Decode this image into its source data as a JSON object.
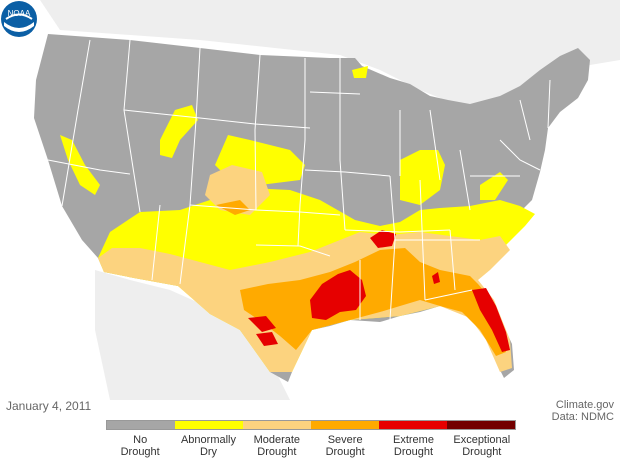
{
  "map": {
    "date": "January 4, 2011",
    "credit_line1": "Climate.gov",
    "credit_line2": "Data: NDMC",
    "logo_text": "NOAA",
    "colors": {
      "no_drought": "#a6a6a6",
      "abnormally_dry": "#ffff00",
      "moderate": "#fcd37f",
      "severe": "#ffaa00",
      "extreme": "#e60000",
      "exceptional": "#730000",
      "state_border": "#ffffff",
      "background": "#ffffff",
      "neighbor_land": "#eeeeee"
    }
  },
  "legend": {
    "items": [
      {
        "label": "No\nDrought",
        "color": "#a6a6a6"
      },
      {
        "label": "Abnormally\nDry",
        "color": "#ffff00"
      },
      {
        "label": "Moderate\nDrought",
        "color": "#fcd37f"
      },
      {
        "label": "Severe\nDrought",
        "color": "#ffaa00"
      },
      {
        "label": "Extreme\nDrought",
        "color": "#e60000"
      },
      {
        "label": "Exceptional\nDrought",
        "color": "#730000"
      }
    ]
  }
}
